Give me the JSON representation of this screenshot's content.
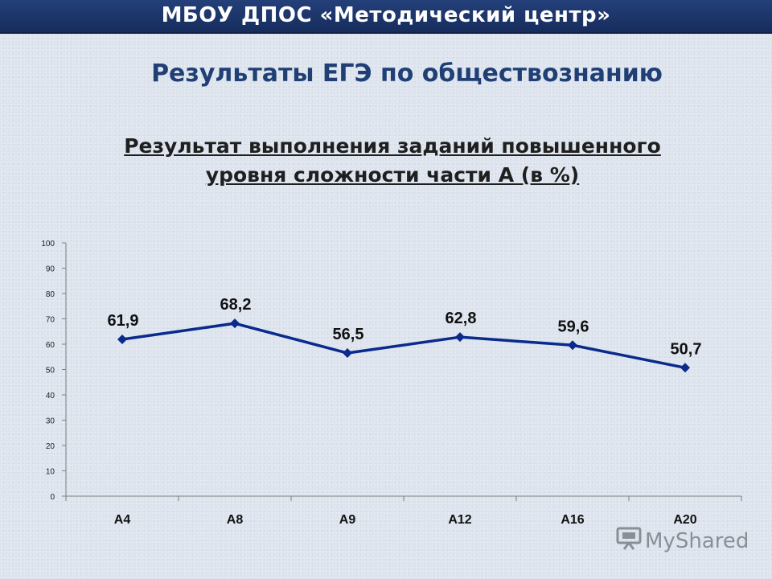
{
  "banner": {
    "title": "МБОУ ДПОС «Методический центр»"
  },
  "page": {
    "title": "Результаты  ЕГЭ по обществознанию"
  },
  "chart_data": {
    "type": "line",
    "title": "Результат выполнения заданий повышенного уровня сложности части А (в %)",
    "title_lines": [
      "Результат выполнения заданий повышенного",
      "уровня сложности части А (в %)"
    ],
    "categories": [
      "А4",
      "А8",
      "А9",
      "А12",
      "А16",
      "А20"
    ],
    "values": [
      61.9,
      68.2,
      56.5,
      62.8,
      59.6,
      50.7
    ],
    "data_labels": [
      "61,9",
      "68,2",
      "56,5",
      "62,8",
      "59,6",
      "50,7"
    ],
    "ylim": [
      0,
      100
    ],
    "yticks": [
      0,
      10,
      20,
      30,
      40,
      50,
      60,
      70,
      80,
      90,
      100
    ],
    "grid": false,
    "legend": "none",
    "line_color": "#0a2a8c",
    "marker": "diamond"
  },
  "watermark": {
    "text": "MyShared"
  }
}
